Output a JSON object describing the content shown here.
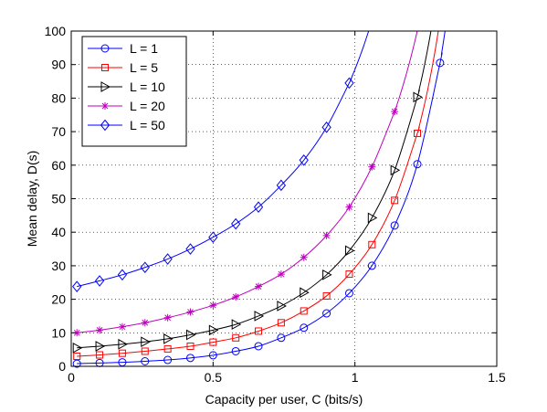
{
  "chart_data": {
    "type": "line",
    "xlabel": "Capacity per user, C (bits/s)",
    "ylabel": "Mean delay, D(s)",
    "xlim": [
      0,
      1.5
    ],
    "ylim": [
      0,
      100
    ],
    "xticks": [
      "0",
      "0.5",
      "1",
      "1.5"
    ],
    "yticks": [
      "0",
      "10",
      "20",
      "30",
      "40",
      "50",
      "60",
      "70",
      "80",
      "90",
      "100"
    ],
    "grid": true,
    "legend_position": "top-left",
    "series": [
      {
        "name": "L = 1",
        "color": "#0000ff",
        "marker": "circle",
        "x": [
          0.02,
          0.1,
          0.18,
          0.26,
          0.34,
          0.42,
          0.5,
          0.58,
          0.66,
          0.74,
          0.82,
          0.9,
          0.98,
          1.06,
          1.14,
          1.22,
          1.3
        ],
        "y": [
          0.8,
          1.0,
          1.2,
          1.5,
          1.9,
          2.5,
          3.3,
          4.5,
          6.0,
          8.5,
          11.5,
          15.8,
          21.8,
          30.0,
          42.0,
          60.3,
          90.5
        ]
      },
      {
        "name": "L = 5",
        "color": "#ff0000",
        "marker": "square",
        "x": [
          0.02,
          0.1,
          0.18,
          0.26,
          0.34,
          0.42,
          0.5,
          0.58,
          0.66,
          0.74,
          0.82,
          0.9,
          0.98,
          1.06,
          1.14,
          1.22
        ],
        "y": [
          3.0,
          3.4,
          3.9,
          4.5,
          5.2,
          6.0,
          7.2,
          8.5,
          10.5,
          13.0,
          16.5,
          21.0,
          27.5,
          36.3,
          49.5,
          69.5
        ]
      },
      {
        "name": "L = 10",
        "color": "#000000",
        "marker": "triangle-right",
        "x": [
          0.02,
          0.1,
          0.18,
          0.26,
          0.34,
          0.42,
          0.5,
          0.58,
          0.66,
          0.74,
          0.82,
          0.9,
          0.98,
          1.06,
          1.14,
          1.22
        ],
        "y": [
          5.5,
          6.0,
          6.6,
          7.3,
          8.2,
          9.4,
          10.8,
          12.5,
          15.0,
          18.0,
          22.0,
          27.3,
          34.5,
          44.3,
          58.5,
          80.3
        ]
      },
      {
        "name": "L = 20",
        "color": "#bf00bf",
        "marker": "star",
        "x": [
          0.02,
          0.1,
          0.18,
          0.26,
          0.34,
          0.42,
          0.5,
          0.58,
          0.66,
          0.74,
          0.82,
          0.9,
          0.98,
          1.06,
          1.14
        ],
        "y": [
          10.0,
          10.8,
          11.8,
          13.0,
          14.5,
          16.2,
          18.2,
          20.7,
          23.8,
          27.5,
          32.5,
          39.0,
          47.5,
          59.5,
          76.0
        ]
      },
      {
        "name": "L = 50",
        "color": "#0000ff",
        "marker": "diamond",
        "x": [
          0.02,
          0.1,
          0.18,
          0.26,
          0.34,
          0.42,
          0.5,
          0.58,
          0.66,
          0.74,
          0.82,
          0.9,
          0.98
        ],
        "y": [
          23.8,
          25.5,
          27.3,
          29.5,
          32.0,
          35.0,
          38.5,
          42.5,
          47.5,
          54.0,
          61.5,
          71.3,
          84.5
        ]
      }
    ]
  }
}
